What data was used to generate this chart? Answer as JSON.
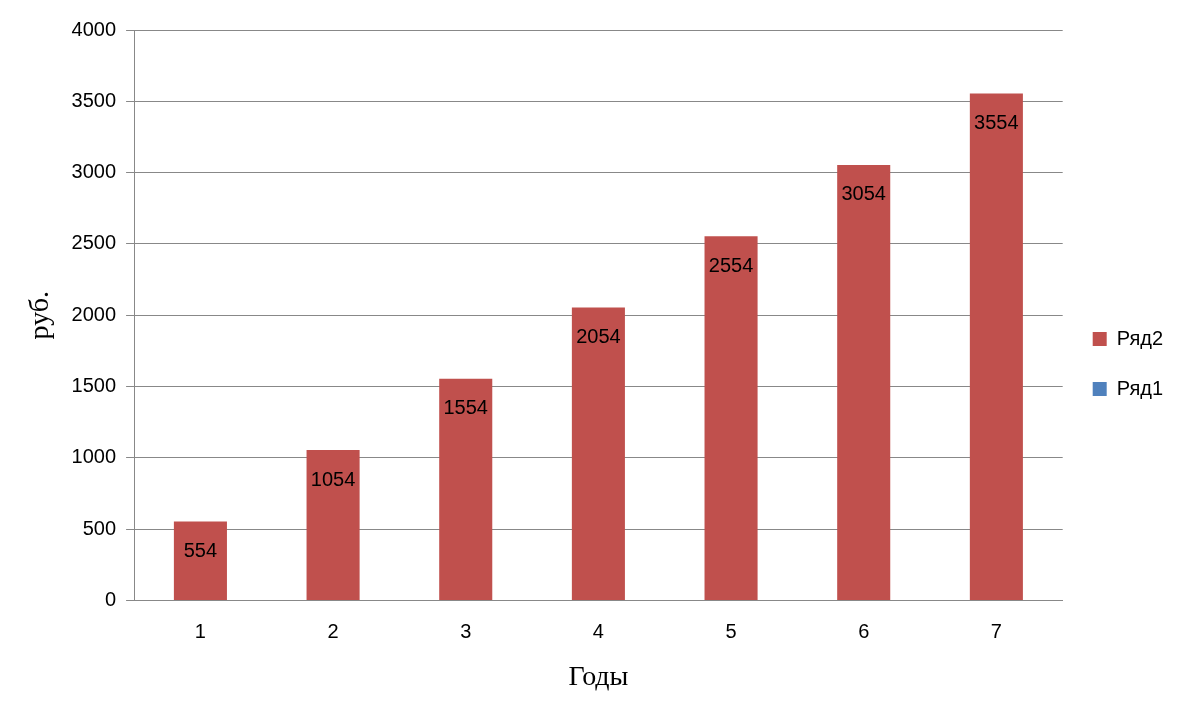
{
  "chart_data": {
    "type": "bar",
    "stacked": true,
    "xlabel": "Годы",
    "ylabel": "руб.",
    "categories": [
      "1",
      "2",
      "3",
      "4",
      "5",
      "6",
      "7"
    ],
    "series": [
      {
        "name": "Ряд1",
        "color": "#4f81bd",
        "values": [
          null,
          null,
          null,
          null,
          null,
          null,
          null
        ]
      },
      {
        "name": "Ряд2",
        "color": "#c0504d",
        "values": [
          554,
          1054,
          1554,
          2054,
          2554,
          3054,
          3554
        ],
        "value_labels": [
          "554",
          "1054",
          "1554",
          "2054",
          "2554",
          "3054",
          "3554"
        ]
      }
    ],
    "ylim": [
      0,
      4000
    ],
    "yticks": [
      0,
      500,
      1000,
      1500,
      2000,
      2500,
      3000,
      3500,
      4000
    ],
    "grid": "y",
    "legend": "right"
  }
}
